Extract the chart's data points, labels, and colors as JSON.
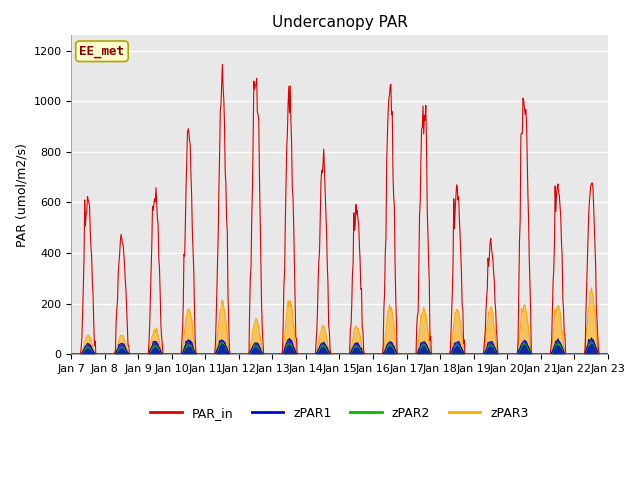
{
  "title": "Undercanopy PAR",
  "ylabel": "PAR (umol/m2/s)",
  "site_label": "EE_met",
  "ylim": [
    0,
    1260
  ],
  "yticks": [
    0,
    200,
    400,
    600,
    800,
    1000,
    1200
  ],
  "plot_bg_color": "#e8e8e8",
  "fig_bg_color": "#ffffff",
  "series": {
    "PAR_in": {
      "color": "#dd0000",
      "lw": 0.8
    },
    "zPAR1": {
      "color": "#0000cc",
      "lw": 0.8
    },
    "zPAR2": {
      "color": "#00bb00",
      "lw": 0.8
    },
    "zPAR3": {
      "color": "#ffaa00",
      "lw": 0.8
    }
  },
  "n_days": 16,
  "start_day": 7,
  "pts_per_day": 48,
  "par_in_peaks": [
    620,
    470,
    640,
    850,
    1065,
    1080,
    1030,
    740,
    590,
    1040,
    1000,
    650,
    430,
    1030,
    670,
    680
  ],
  "zpar3_peaks": [
    80,
    80,
    110,
    210,
    225,
    150,
    235,
    120,
    120,
    210,
    200,
    200,
    200,
    210,
    210,
    270
  ],
  "zpar1_peaks": [
    45,
    45,
    55,
    60,
    60,
    50,
    65,
    50,
    50,
    55,
    55,
    55,
    55,
    60,
    60,
    65
  ],
  "zpar2_peaks": [
    30,
    30,
    35,
    40,
    50,
    35,
    45,
    35,
    35,
    40,
    40,
    40,
    40,
    45,
    45,
    50
  ],
  "title_fontsize": 11,
  "label_fontsize": 9,
  "tick_fontsize": 8,
  "legend_fontsize": 9
}
